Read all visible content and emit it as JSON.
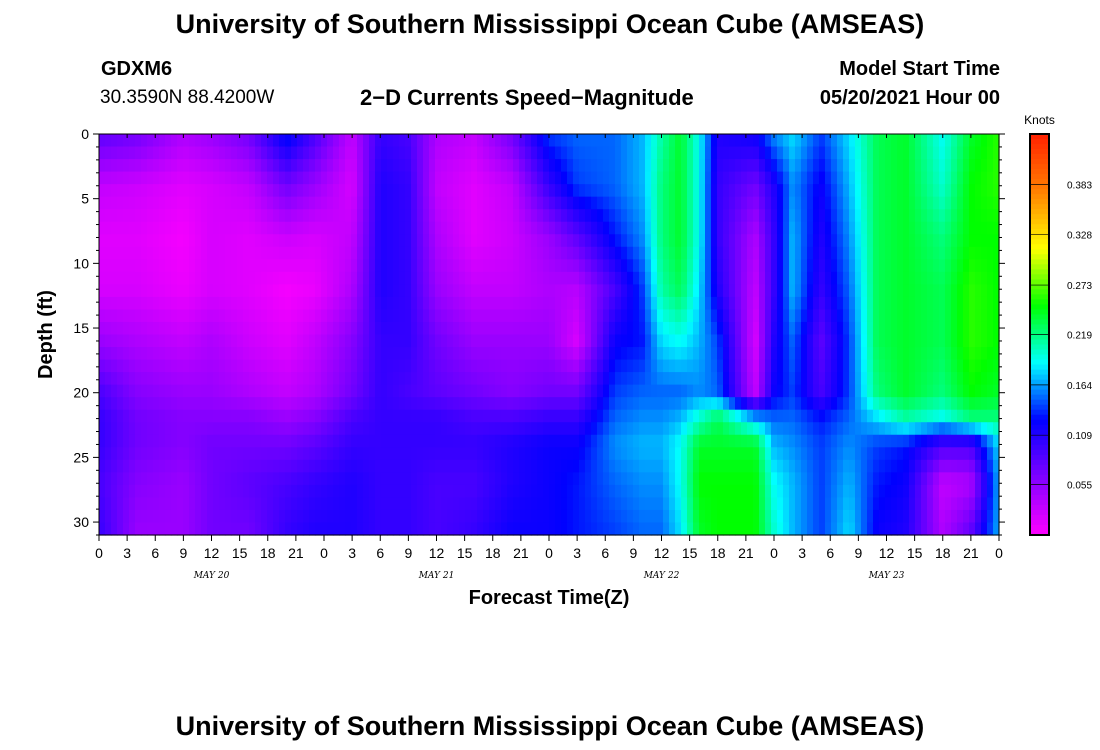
{
  "header": {
    "title": "University of Southern Mississippi Ocean Cube (AMSEAS)",
    "station_id": "GDXM6",
    "station_coords": "30.3590N  88.4200W",
    "plot_title": "2−D Currents Speed−Magnitude",
    "model_start_label": "Model Start Time",
    "model_start_value": "05/20/2021 Hour 00"
  },
  "footer": {
    "title": "University of Southern Mississippi Ocean Cube (AMSEAS)"
  },
  "chart_data": {
    "type": "heatmap",
    "title": "2−D Currents Speed−Magnitude",
    "xlabel": "Forecast Time(Z)",
    "ylabel": "Depth (ft)",
    "x_tick_labels": [
      "0",
      "3",
      "6",
      "9",
      "12",
      "15",
      "18",
      "21",
      "0",
      "3",
      "6",
      "9",
      "12",
      "15",
      "18",
      "21",
      "0",
      "3",
      "6",
      "9",
      "12",
      "15",
      "18",
      "21",
      "0",
      "3",
      "6",
      "9",
      "12",
      "15",
      "18",
      "21",
      "0"
    ],
    "x_date_labels": [
      "MAY 20",
      "MAY 21",
      "MAY 22",
      "MAY 23"
    ],
    "x_hours_range": [
      0,
      96
    ],
    "y_ticks": [
      0,
      5,
      10,
      15,
      20,
      25,
      30
    ],
    "y_range": [
      0,
      31
    ],
    "y_inverted": true,
    "colorbar": {
      "unit_label": "Knots",
      "tick_labels": [
        "0.383",
        "0.328",
        "0.273",
        "0.219",
        "0.164",
        "0.109",
        "0.055"
      ],
      "range": [
        0,
        0.438
      ],
      "colors": [
        "#ff00ff",
        "#8000ff",
        "#0000ff",
        "#00ffff",
        "#00ff00",
        "#ffff00",
        "#ff8000",
        "#ff2000"
      ]
    },
    "time_hours": [
      0,
      4,
      9,
      12,
      16,
      20,
      23,
      27,
      30,
      33,
      36,
      40,
      44,
      48,
      51,
      55,
      58,
      60,
      62,
      64,
      66,
      70,
      72,
      74,
      77,
      80,
      83,
      86,
      90,
      93,
      96
    ],
    "depth_ft": [
      0,
      4,
      8,
      12,
      16,
      20,
      22,
      24,
      27,
      31
    ],
    "speed_knots": [
      [
        0.08,
        0.03,
        0.015,
        0.02,
        0.05,
        0.09,
        0.1,
        0.1,
        0.09,
        0.1
      ],
      [
        0.07,
        0.025,
        0.015,
        0.02,
        0.04,
        0.06,
        0.07,
        0.07,
        0.06,
        0.05
      ],
      [
        0.04,
        0.015,
        0.005,
        0.01,
        0.03,
        0.05,
        0.06,
        0.06,
        0.05,
        0.05
      ],
      [
        0.05,
        0.02,
        0.02,
        0.02,
        0.04,
        0.05,
        0.06,
        0.07,
        0.07,
        0.07
      ],
      [
        0.07,
        0.03,
        0.015,
        0.015,
        0.025,
        0.04,
        0.06,
        0.07,
        0.08,
        0.07
      ],
      [
        0.13,
        0.07,
        0.025,
        0.005,
        0.015,
        0.03,
        0.05,
        0.07,
        0.09,
        0.1
      ],
      [
        0.09,
        0.05,
        0.02,
        0.01,
        0.03,
        0.04,
        0.06,
        0.08,
        0.1,
        0.11
      ],
      [
        0.03,
        0.02,
        0.03,
        0.04,
        0.06,
        0.07,
        0.09,
        0.1,
        0.11,
        0.11
      ],
      [
        0.1,
        0.11,
        0.11,
        0.11,
        0.1,
        0.1,
        0.1,
        0.1,
        0.1,
        0.1
      ],
      [
        0.09,
        0.1,
        0.1,
        0.1,
        0.1,
        0.09,
        0.1,
        0.1,
        0.1,
        0.1
      ],
      [
        0.04,
        0.03,
        0.04,
        0.05,
        0.07,
        0.08,
        0.1,
        0.1,
        0.09,
        0.09
      ],
      [
        0.03,
        0.015,
        0.015,
        0.03,
        0.05,
        0.07,
        0.09,
        0.1,
        0.09,
        0.1
      ],
      [
        0.07,
        0.03,
        0.025,
        0.03,
        0.05,
        0.06,
        0.09,
        0.11,
        0.11,
        0.12
      ],
      [
        0.14,
        0.1,
        0.05,
        0.04,
        0.05,
        0.07,
        0.1,
        0.12,
        0.12,
        0.12
      ],
      [
        0.15,
        0.14,
        0.08,
        0.035,
        0.02,
        0.07,
        0.1,
        0.12,
        0.13,
        0.13
      ],
      [
        0.15,
        0.15,
        0.13,
        0.09,
        0.12,
        0.14,
        0.15,
        0.16,
        0.15,
        0.14
      ],
      [
        0.17,
        0.17,
        0.16,
        0.14,
        0.13,
        0.15,
        0.16,
        0.17,
        0.16,
        0.15
      ],
      [
        0.21,
        0.22,
        0.22,
        0.21,
        0.18,
        0.15,
        0.16,
        0.17,
        0.16,
        0.15
      ],
      [
        0.24,
        0.24,
        0.24,
        0.23,
        0.19,
        0.15,
        0.17,
        0.19,
        0.19,
        0.18
      ],
      [
        0.19,
        0.19,
        0.19,
        0.18,
        0.17,
        0.16,
        0.2,
        0.24,
        0.25,
        0.24
      ],
      [
        0.11,
        0.1,
        0.1,
        0.11,
        0.14,
        0.15,
        0.23,
        0.24,
        0.25,
        0.25
      ],
      [
        0.12,
        0.07,
        0.04,
        0.03,
        0.02,
        0.03,
        0.17,
        0.24,
        0.25,
        0.25
      ],
      [
        0.16,
        0.11,
        0.1,
        0.1,
        0.11,
        0.12,
        0.15,
        0.17,
        0.19,
        0.2
      ],
      [
        0.18,
        0.16,
        0.17,
        0.17,
        0.15,
        0.14,
        0.15,
        0.16,
        0.17,
        0.17
      ],
      [
        0.14,
        0.12,
        0.11,
        0.1,
        0.08,
        0.09,
        0.13,
        0.14,
        0.14,
        0.14
      ],
      [
        0.18,
        0.17,
        0.16,
        0.15,
        0.14,
        0.14,
        0.15,
        0.16,
        0.17,
        0.18
      ],
      [
        0.23,
        0.23,
        0.23,
        0.23,
        0.23,
        0.22,
        0.18,
        0.14,
        0.13,
        0.12
      ],
      [
        0.24,
        0.24,
        0.24,
        0.24,
        0.24,
        0.24,
        0.21,
        0.13,
        0.12,
        0.11
      ],
      [
        0.19,
        0.2,
        0.22,
        0.23,
        0.23,
        0.22,
        0.19,
        0.09,
        0.03,
        0.04
      ],
      [
        0.24,
        0.25,
        0.25,
        0.26,
        0.26,
        0.25,
        0.22,
        0.09,
        0.04,
        0.08
      ],
      [
        0.26,
        0.26,
        0.25,
        0.25,
        0.25,
        0.24,
        0.22,
        0.18,
        0.17,
        0.17
      ]
    ]
  }
}
